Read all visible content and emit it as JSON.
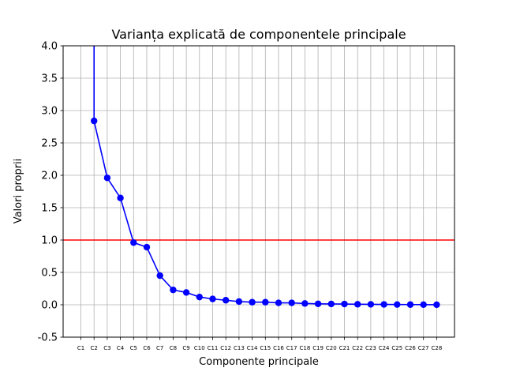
{
  "chart_data": {
    "type": "line",
    "title": "Varianța explicată de componentele principale",
    "xlabel": "Componente principale",
    "ylabel": "Valori proprii",
    "ylim": [
      -0.5,
      4.0
    ],
    "yticks": [
      -0.5,
      0.0,
      0.5,
      1.0,
      1.5,
      2.0,
      2.5,
      3.0,
      3.5,
      4.0
    ],
    "grid": true,
    "categories": [
      "C1",
      "C2",
      "C3",
      "C4",
      "C5",
      "C6",
      "C7",
      "C8",
      "C9",
      "C10",
      "C11",
      "C12",
      "C13",
      "C14",
      "C15",
      "C16",
      "C17",
      "C18",
      "C19",
      "C20",
      "C21",
      "C22",
      "C23",
      "C24",
      "C25",
      "C26",
      "C27",
      "C28"
    ],
    "series": [
      {
        "values": [
          null,
          2.84,
          1.96,
          1.65,
          0.96,
          0.89,
          0.45,
          0.23,
          0.19,
          0.12,
          0.09,
          0.07,
          0.05,
          0.04,
          0.04,
          0.03,
          0.03,
          0.02,
          0.015,
          0.013,
          0.012,
          0.008,
          0.007,
          0.005,
          0.004,
          0.003,
          0.002,
          0.001
        ],
        "color": "#0000ff"
      }
    ],
    "hline": {
      "y": 1.0,
      "color": "#ff0000"
    }
  }
}
